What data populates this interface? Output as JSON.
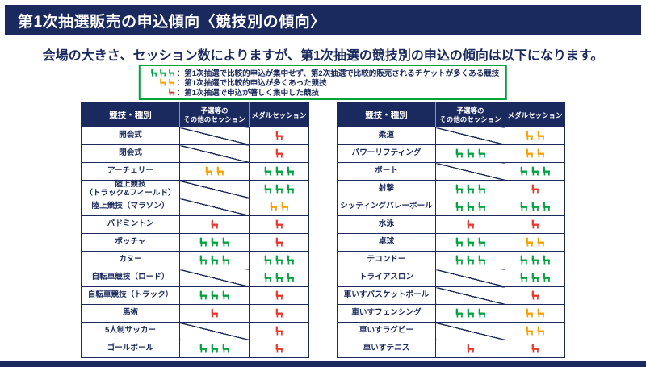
{
  "header": {
    "title": "第1次抽選販売の申込傾向〈競技別の傾向〉"
  },
  "intro": "会場の大きさ、セッション数によりますが、第1次抽選の競技別の申込の傾向は以下になります。",
  "colors": {
    "navy": "#1b2a5e",
    "green": "#00a33e",
    "orange": "#f5a200",
    "red": "#e8382d"
  },
  "legend": {
    "items": [
      {
        "icon_count": 3,
        "icon_color": "green",
        "label": "：第1次抽選で比較的申込が集中せず、第2次抽選で比較的販売されるチケットが多くある競技"
      },
      {
        "icon_count": 2,
        "icon_color": "orange",
        "label": "：第1次抽選で比較的申込が多くあった競技"
      },
      {
        "icon_count": 1,
        "icon_color": "red",
        "label": "：第1次抽選で申込が著しく集中した競技"
      }
    ]
  },
  "table_headers": {
    "sport": "競技・種別",
    "other": "予選等の\nその他のセッション",
    "medal": "メダルセッション"
  },
  "tables": [
    {
      "rows": [
        {
          "sport": "開会式",
          "other": "slash",
          "medal": "red1"
        },
        {
          "sport": "閉会式",
          "other": "slash",
          "medal": "red1"
        },
        {
          "sport": "アーチェリー",
          "other": "orange2",
          "medal": "green3"
        },
        {
          "sport": "陸上競技\n（トラック&フィールド）",
          "other": "slash",
          "medal": "green3"
        },
        {
          "sport": "陸上競技（マラソン）",
          "other": "slash",
          "medal": "orange2"
        },
        {
          "sport": "バドミントン",
          "other": "red1",
          "medal": "red1"
        },
        {
          "sport": "ボッチャ",
          "other": "green3",
          "medal": "red1"
        },
        {
          "sport": "カヌー",
          "other": "green3",
          "medal": "green3"
        },
        {
          "sport": "自転車競技（ロード）",
          "other": "slash",
          "medal": "green3"
        },
        {
          "sport": "自転車競技（トラック）",
          "other": "green3",
          "medal": "red1"
        },
        {
          "sport": "馬術",
          "other": "red1",
          "medal": "red1"
        },
        {
          "sport": "5人制サッカー",
          "other": "slash",
          "medal": "red1"
        },
        {
          "sport": "ゴールボール",
          "other": "green3",
          "medal": "red1"
        }
      ]
    },
    {
      "rows": [
        {
          "sport": "柔道",
          "other": "slash",
          "medal": "orange2"
        },
        {
          "sport": "パワーリフティング",
          "other": "green3",
          "medal": "orange2"
        },
        {
          "sport": "ボート",
          "other": "slash",
          "medal": "green3"
        },
        {
          "sport": "射撃",
          "other": "green3",
          "medal": "red1"
        },
        {
          "sport": "シッティングバレーボール",
          "other": "green3",
          "medal": "green3"
        },
        {
          "sport": "水泳",
          "other": "red1",
          "medal": "red1"
        },
        {
          "sport": "卓球",
          "other": "green3",
          "medal": "orange2"
        },
        {
          "sport": "テコンドー",
          "other": "green3",
          "medal": "green3"
        },
        {
          "sport": "トライアスロン",
          "other": "slash",
          "medal": "green3"
        },
        {
          "sport": "車いすバスケットボール",
          "other": "slash",
          "medal": "red1"
        },
        {
          "sport": "車いすフェンシング",
          "other": "green3",
          "medal": "orange2"
        },
        {
          "sport": "車いすラグビー",
          "other": "slash",
          "medal": "orange2"
        },
        {
          "sport": "車いすテニス",
          "other": "red1",
          "medal": "red1"
        }
      ]
    }
  ]
}
